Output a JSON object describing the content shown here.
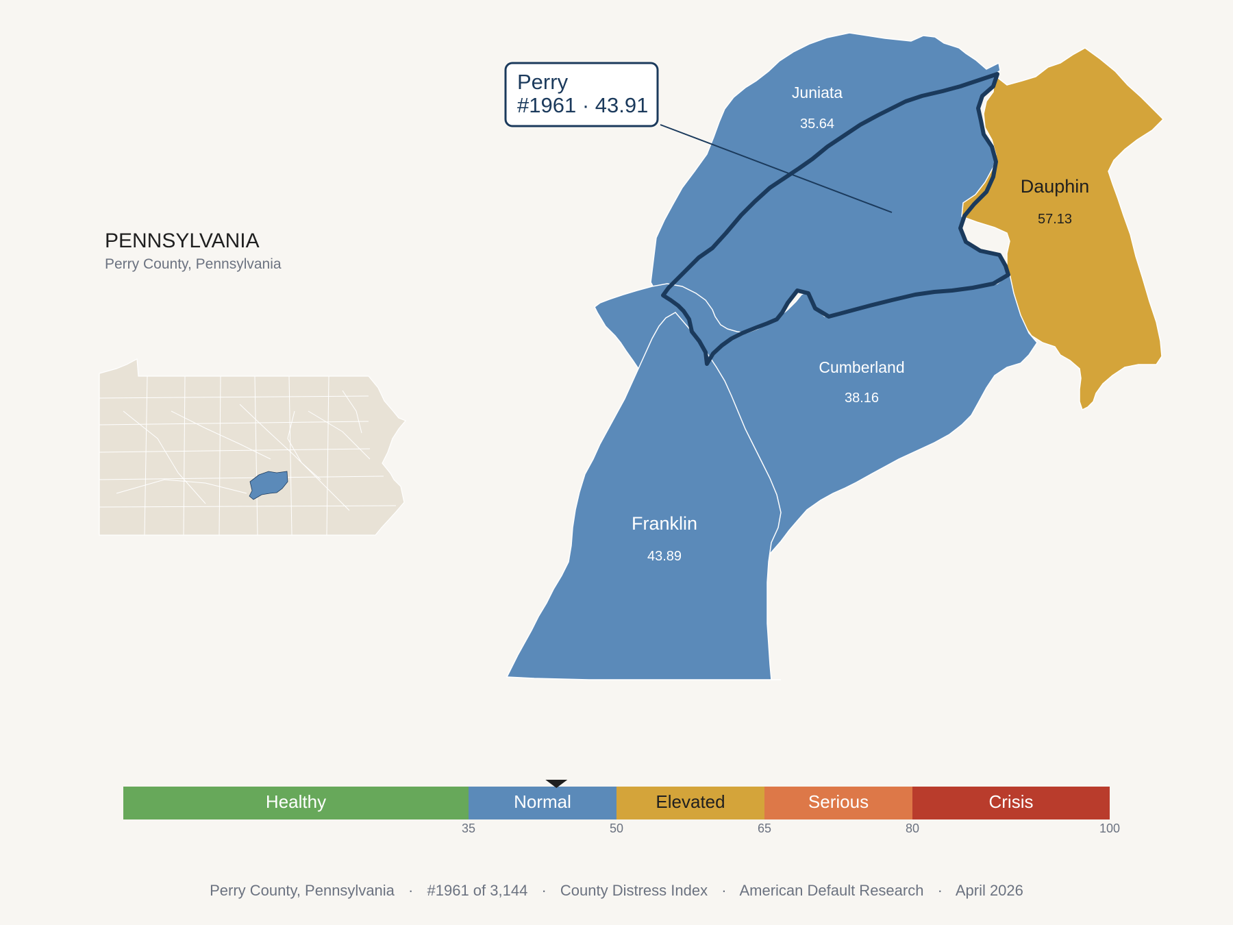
{
  "header": {
    "state_title": "PENNSYLVANIA",
    "subtitle": "Perry County, Pennsylvania"
  },
  "callout": {
    "name": "Perry",
    "detail": "#1961 · 43.91"
  },
  "counties": {
    "juniata": {
      "name": "Juniata",
      "value": "35.64",
      "color": "#5b8ab9"
    },
    "dauphin": {
      "name": "Dauphin",
      "value": "57.13",
      "color": "#d4a43a"
    },
    "cumberland": {
      "name": "Cumberland",
      "value": "38.16",
      "color": "#5b8ab9"
    },
    "franklin": {
      "name": "Franklin",
      "value": "43.89",
      "color": "#5b8ab9"
    },
    "perry": {
      "name": "Perry",
      "value": "43.91",
      "color": "#5b8ab9",
      "outline_color": "#1b3a5c"
    }
  },
  "legend": {
    "bands": [
      {
        "label": "Healthy",
        "color": "#67a85a",
        "min": 0,
        "max": 35
      },
      {
        "label": "Normal",
        "color": "#5b8ab9",
        "min": 35,
        "max": 50
      },
      {
        "label": "Elevated",
        "color": "#d4a43a",
        "min": 50,
        "max": 65
      },
      {
        "label": "Serious",
        "color": "#dd7848",
        "min": 65,
        "max": 80
      },
      {
        "label": "Crisis",
        "color": "#b93c2c",
        "min": 80,
        "max": 100
      }
    ],
    "ticks": [
      "35",
      "50",
      "65",
      "80",
      "100"
    ],
    "marker_value": 43.91
  },
  "footer": {
    "county": "Perry County, Pennsylvania",
    "rank": "#1961 of 3,144",
    "index": "County Distress Index",
    "org": "American Default Research",
    "date": "April 2026",
    "separator": "·"
  },
  "colors": {
    "background": "#f8f6f2",
    "inset_fill": "#e8e2d6",
    "inset_highlight": "#5b8ab9",
    "perry_outline": "#1b3a5c"
  }
}
